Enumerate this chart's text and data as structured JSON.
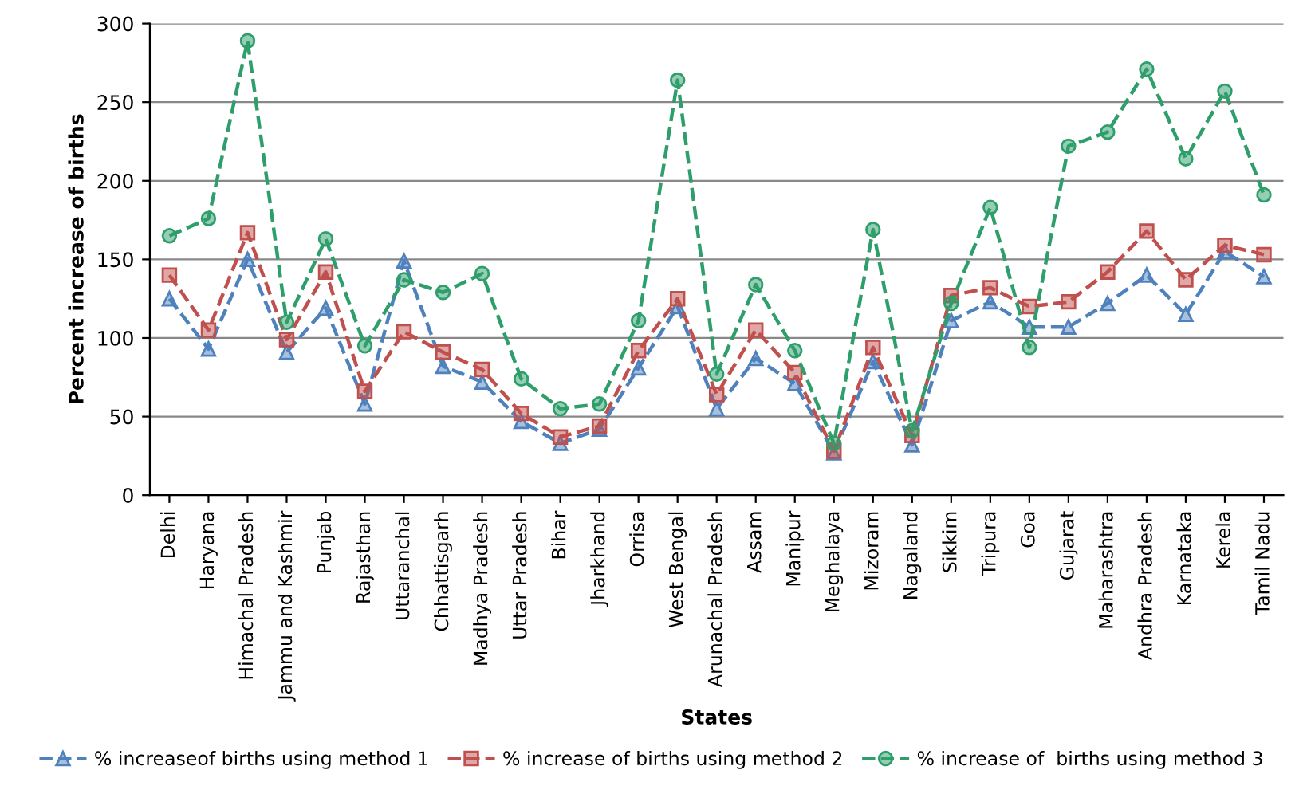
{
  "chart_data": {
    "type": "line",
    "xlabel": "States",
    "ylabel": "Percent increase of births",
    "categories": [
      "Delhi",
      "Haryana",
      "Himachal Pradesh",
      "Jammu and Kashmir",
      "Punjab",
      "Rajasthan",
      "Uttaranchal",
      "Chhattisgarh",
      "Madhya Pradesh",
      "Uttar Pradesh",
      "Bihar",
      "Jharkhand",
      "Orrisa",
      "West Bengal",
      "Arunachal Pradesh",
      "Assam",
      "Manipur",
      "Meghalaya",
      "Mizoram",
      "Nagaland",
      "Sikkim",
      "Tripura",
      "Goa",
      "Gujarat",
      "Maharashtra",
      "Andhra Pradesh",
      "Karnataka",
      "Kerela",
      "Tamil Nadu"
    ],
    "series": [
      {
        "name": "% increaseof births using method 1",
        "color": "#4f81bd",
        "marker": "triangle",
        "values": [
          125,
          93,
          150,
          91,
          119,
          58,
          149,
          82,
          72,
          47,
          33,
          42,
          81,
          120,
          55,
          87,
          71,
          27,
          85,
          32,
          111,
          123,
          107,
          107,
          122,
          140,
          115,
          155,
          139
        ]
      },
      {
        "name": "% increase of births using method 2",
        "color": "#c0504d",
        "marker": "square",
        "values": [
          140,
          105,
          167,
          99,
          142,
          66,
          104,
          91,
          80,
          52,
          37,
          44,
          92,
          125,
          64,
          105,
          78,
          28,
          94,
          38,
          127,
          132,
          120,
          123,
          142,
          168,
          137,
          159,
          153
        ]
      },
      {
        "name": "% increase of  births using method 3",
        "color": "#2e9e6b",
        "marker": "circle",
        "values": [
          165,
          176,
          289,
          110,
          163,
          95,
          137,
          129,
          141,
          74,
          55,
          58,
          111,
          264,
          77,
          134,
          92,
          33,
          169,
          41,
          122,
          183,
          94,
          222,
          231,
          271,
          214,
          257,
          191
        ]
      }
    ],
    "ylim": [
      0,
      300
    ],
    "yticks": [
      0,
      50,
      100,
      150,
      200,
      250,
      300
    ],
    "grid": "y",
    "legend": "bottom",
    "line_style": "dashed"
  }
}
